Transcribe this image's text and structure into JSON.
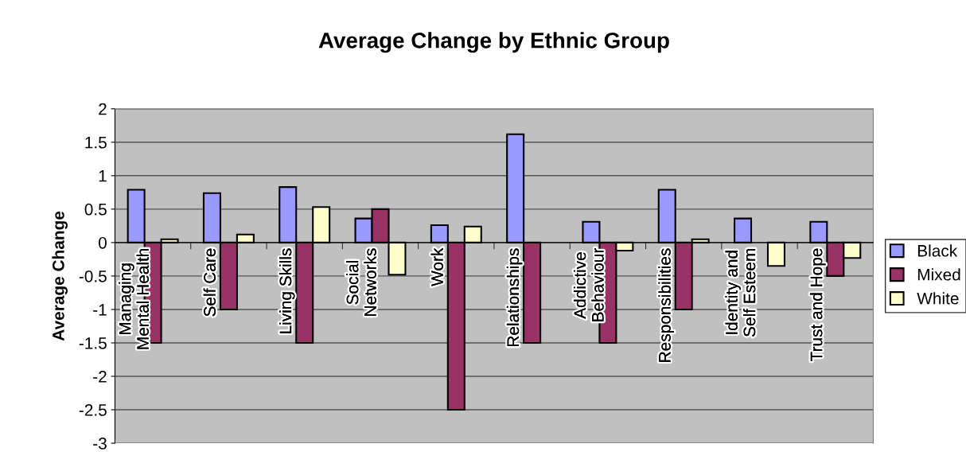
{
  "chart_data": {
    "type": "bar",
    "title": "Average Change by Ethnic Group",
    "ylabel": "Average Change",
    "categories": [
      "Managing\nMental Health",
      "Self Care",
      "Living Skills",
      "Social\nNetworks",
      "Work",
      "Relationships",
      "Addictive\nBehaviour",
      "Responsibilities",
      "Identity and\nSelf Esteem",
      "Trust and Hope"
    ],
    "series": [
      {
        "name": "Black",
        "color": "#9999ff",
        "values": [
          0.79,
          0.74,
          0.83,
          0.36,
          0.26,
          1.62,
          0.31,
          0.79,
          0.36,
          0.31
        ]
      },
      {
        "name": "Mixed",
        "color": "#993366",
        "values": [
          -1.5,
          -1,
          -1.5,
          0.5,
          -2.5,
          -1.5,
          -1.5,
          -1,
          null,
          -0.5
        ]
      },
      {
        "name": "White",
        "color": "#ffffcc",
        "values": [
          0.05,
          0.12,
          0.53,
          -0.48,
          0.24,
          null,
          -0.12,
          0.05,
          -0.35,
          -0.23
        ]
      }
    ],
    "ylim": [
      -3,
      2
    ],
    "yticks": [
      -3,
      -2.5,
      -2,
      -1.5,
      -1,
      -0.5,
      0,
      0.5,
      1,
      1.5,
      2
    ],
    "grid": "y",
    "legend": "right"
  }
}
